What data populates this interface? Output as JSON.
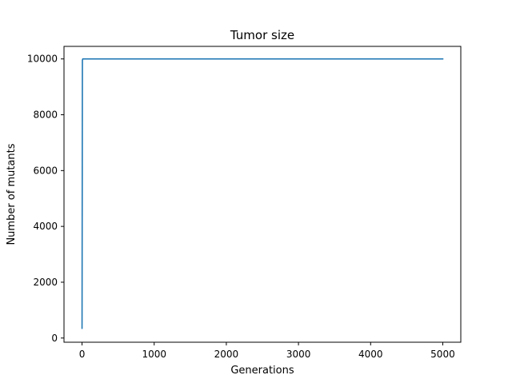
{
  "chart_data": {
    "type": "line",
    "title": "Tumor size",
    "xlabel": "Generations",
    "ylabel": "Number of mutants",
    "xlim": [
      -250,
      5250
    ],
    "ylim": [
      -150,
      10450
    ],
    "xticks": [
      0,
      1000,
      2000,
      3000,
      4000,
      5000
    ],
    "yticks": [
      0,
      2000,
      4000,
      6000,
      8000,
      10000
    ],
    "xtick_labels": [
      "0",
      "1000",
      "2000",
      "3000",
      "4000",
      "5000"
    ],
    "ytick_labels": [
      "0",
      "2000",
      "4000",
      "6000",
      "8000",
      "10000"
    ],
    "grid": false,
    "legend": "none",
    "series": [
      {
        "color": "#1f77b4",
        "x": [
          0,
          5,
          10,
          20,
          5000
        ],
        "y": [
          350,
          9950,
          10000,
          10000,
          10000
        ]
      }
    ]
  }
}
